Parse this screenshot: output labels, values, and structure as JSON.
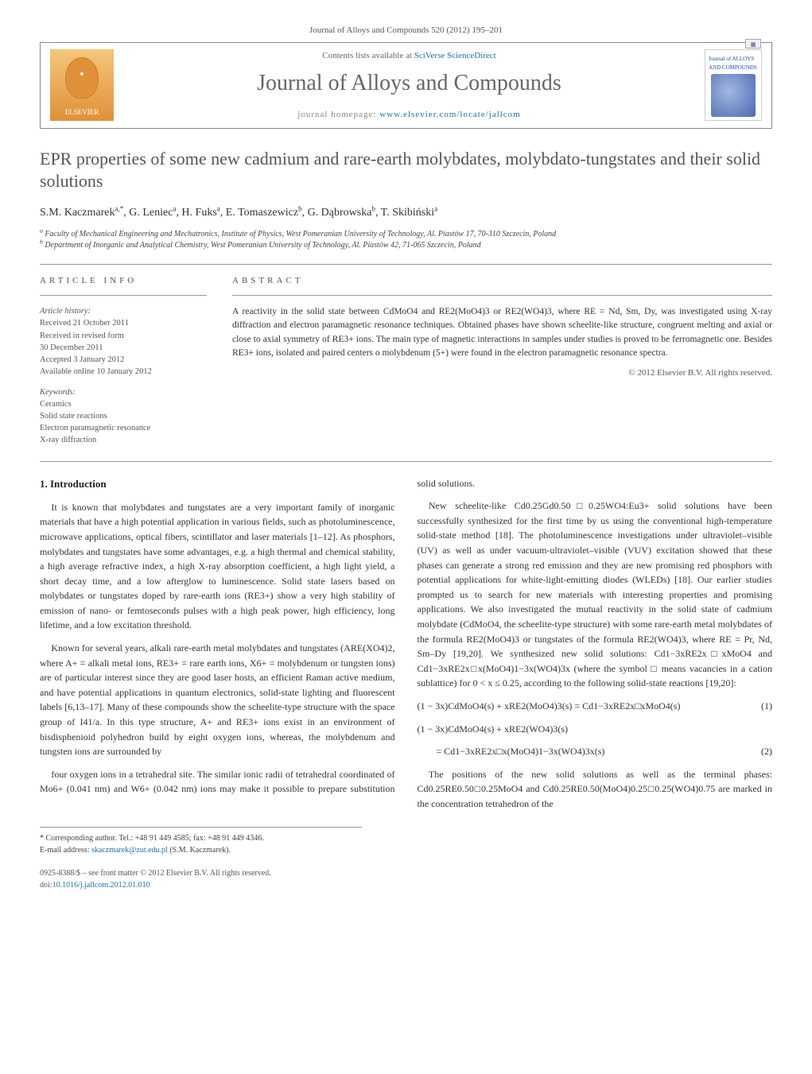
{
  "header": {
    "citation": "Journal of Alloys and Compounds 520 (2012) 195–201",
    "contents_prefix": "Contents lists available at ",
    "contents_link": "SciVerse ScienceDirect",
    "journal_name": "Journal of Alloys and Compounds",
    "homepage_prefix": "journal homepage: ",
    "homepage_url": "www.elsevier.com/locate/jallcom",
    "publisher": "ELSEVIER",
    "cover_title": "Journal of ALLOYS AND COMPOUNDS"
  },
  "article": {
    "title": "EPR properties of some new cadmium and rare-earth molybdates, molybdato-tungstates and their solid solutions",
    "authors_html": "S.M. Kaczmarek<sup>a,*</sup>, G. Leniec<sup>a</sup>, H. Fuks<sup>a</sup>, E. Tomaszewicz<sup>b</sup>, G. Dąbrowska<sup>b</sup>, T. Skibiński<sup>a</sup>",
    "affiliations": [
      "a Faculty of Mechanical Engineering and Mechatronics, Institute of Physics, West Pomeranian University of Technology, Al. Piastów 17, 70-310 Szczecin, Poland",
      "b Department of Inorganic and Analytical Chemistry, West Pomeranian University of Technology, Al. Piastów 42, 71-065 Szczecin, Poland"
    ]
  },
  "info": {
    "heading": "ARTICLE INFO",
    "history_label": "Article history:",
    "history": [
      "Received 21 October 2011",
      "Received in revised form",
      "30 December 2011",
      "Accepted 3 January 2012",
      "Available online 10 January 2012"
    ],
    "keywords_label": "Keywords:",
    "keywords": [
      "Ceramics",
      "Solid state reactions",
      "Electron paramagnetic resonance",
      "X-ray diffraction"
    ]
  },
  "abstract": {
    "heading": "ABSTRACT",
    "text": "A reactivity in the solid state between CdMoO4 and RE2(MoO4)3 or RE2(WO4)3, where RE = Nd, Sm, Dy, was investigated using X-ray diffraction and electron paramagnetic resonance techniques. Obtained phases have shown scheelite-like structure, congruent melting and axial or close to axial symmetry of RE3+ ions. The main type of magnetic interactions in samples under studies is proved to be ferromagnetic one. Besides RE3+ ions, isolated and paired centers o molybdenum (5+) were found in the electron paramagnetic resonance spectra.",
    "copyright": "© 2012 Elsevier B.V. All rights reserved."
  },
  "body": {
    "section1_heading": "1. Introduction",
    "para1": "It is known that molybdates and tungstates are a very important family of inorganic materials that have a high potential application in various fields, such as photoluminescence, microwave applications, optical fibers, scintillator and laser materials [1–12]. As phosphors, molybdates and tungstates have some advantages, e.g. a high thermal and chemical stability, a high average refractive index, a high X-ray absorption coefficient, a high light yield, a short decay time, and a low afterglow to luminescence. Solid state lasers based on molybdates or tungstates doped by rare-earth ions (RE3+) show a very high stability of emission of nano- or femtoseconds pulses with a high peak power, high efficiency, long lifetime, and a low excitation threshold.",
    "para2": "Known for several years, alkali rare-earth metal molybdates and tungstates (ARE(XO4)2, where A+ = alkali metal ions, RE3+ = rare earth ions, X6+ = molybdenum or tungsten ions) are of particular interest since they are good laser hosts, an efficient Raman active medium, and have potential applications in quantum electronics, solid-state lighting and fluorescent labels [6,13–17]. Many of these compounds show the scheelite-type structure with the space group of I41/a. In this type structure, A+ and RE3+ ions exist in an environment of bisdisphenioid polyhedron build by eight oxygen ions, whereas, the molybdenum and tungsten ions are surrounded by",
    "para3": "four oxygen ions in a tetrahedral site. The similar ionic radii of tetrahedral coordinated of Mo6+ (0.041 nm) and W6+ (0.042 nm) ions may make it possible to prepare substitution solid solutions.",
    "para4": "New scheelite-like Cd0.25Gd0.50□0.25WO4:Eu3+ solid solutions have been successfully synthesized for the first time by us using the conventional high-temperature solid-state method [18]. The photoluminescence investigations under ultraviolet–visible (UV) as well as under vacuum-ultraviolet–visible (VUV) excitation showed that these phases can generate a strong red emission and they are new promising red phosphors with potential applications for white-light-emitting diodes (WLEDs) [18]. Our earlier studies prompted us to search for new materials with interesting properties and promising applications. We also investigated the mutual reactivity in the solid state of cadmium molybdate (CdMoO4, the scheelite-type structure) with some rare-earth metal molybdates of the formula RE2(MoO4)3 or tungstates of the formula RE2(WO4)3, where RE = Pr, Nd, Sm–Dy [19,20]. We synthesized new solid solutions: Cd1−3xRE2x□xMoO4 and Cd1−3xRE2x□x(MoO4)1−3x(WO4)3x (where the symbol □ means vacancies in a cation sublattice) for 0 < x ≤ 0.25, according to the following solid-state reactions [19,20]:",
    "eqn1": "(1 − 3x)CdMoO4(s) + xRE2(MoO4)3(s) = Cd1−3xRE2x□xMoO4(s)",
    "eqn1_num": "(1)",
    "eqn2a": "(1 − 3x)CdMoO4(s) + xRE2(WO4)3(s)",
    "eqn2b": "= Cd1−3xRE2x□x(MoO4)1−3x(WO4)3x(s)",
    "eqn2_num": "(2)",
    "para5": "The positions of the new solid solutions as well as the terminal phases: Cd0.25RE0.50□0.25MoO4 and Cd0.25RE0.50(MoO4)0.25□0.25(WO4)0.75 are marked in the concentration tetrahedron of the"
  },
  "footnote": {
    "corresponding": "* Corresponding author. Tel.: +48 91 449 4585; fax: +48 91 449 4346.",
    "email_label": "E-mail address: ",
    "email": "skaczmarek@zut.edu.pl",
    "email_attrib": " (S.M. Kaczmarek)."
  },
  "bottom": {
    "line1": "0925-8388/$ – see front matter © 2012 Elsevier B.V. All rights reserved.",
    "doi_label": "doi:",
    "doi": "10.1016/j.jallcom.2012.01.010"
  },
  "colors": {
    "link": "#1a6fb0",
    "heading_gray": "#555555",
    "text": "#333333",
    "rule": "#999999"
  }
}
